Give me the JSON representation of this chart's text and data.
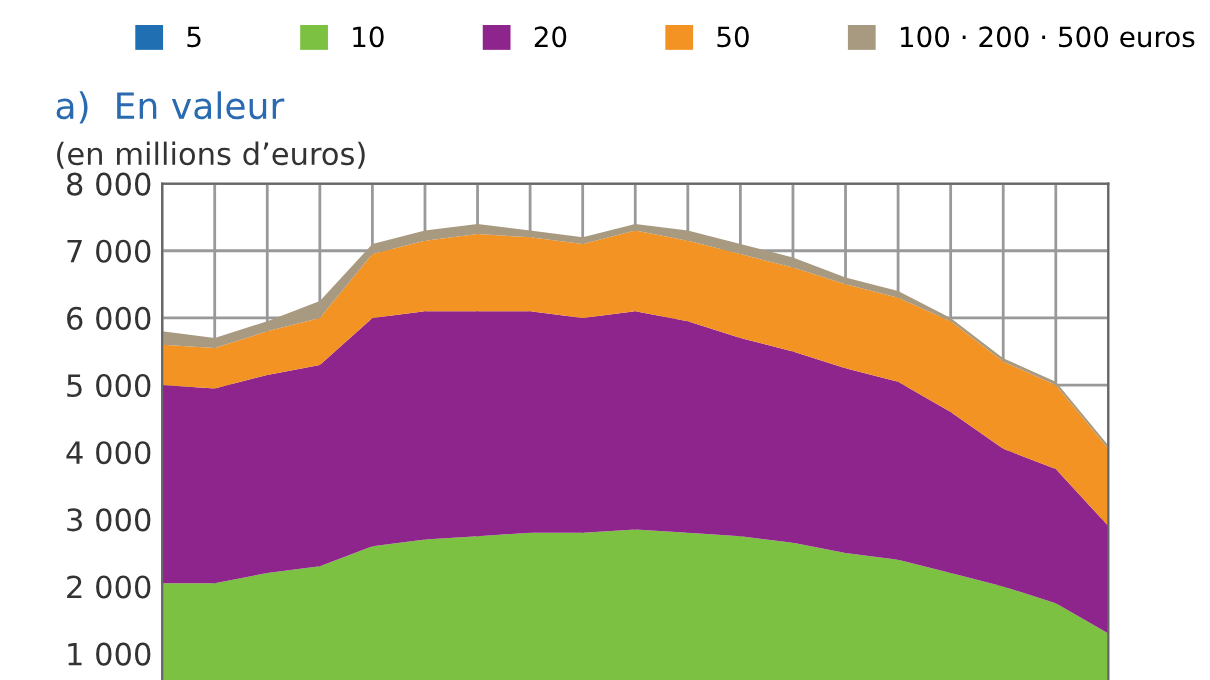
{
  "chart_data": {
    "type": "area",
    "stacked": true,
    "title": "a)  En valeur",
    "subtitle": "(en millions d’euros)",
    "categories": [
      null,
      null,
      null,
      null,
      null,
      null,
      null,
      null,
      null,
      null,
      null,
      null,
      null,
      null,
      null,
      null,
      null,
      null,
      null
    ],
    "series": [
      {
        "name": "5",
        "color": "#1f6fb2",
        "values": [
          null,
          null,
          null,
          null,
          null,
          null,
          null,
          null,
          null,
          null,
          null,
          null,
          null,
          null,
          null,
          null,
          null,
          null,
          null
        ]
      },
      {
        "name": "10",
        "color": "#7dc142",
        "values": [
          2050,
          2050,
          2200,
          2300,
          2600,
          2700,
          2750,
          2800,
          2800,
          2850,
          2800,
          2750,
          2650,
          2500,
          2400,
          2200,
          2000,
          1750,
          1300
        ]
      },
      {
        "name": "20",
        "color": "#8e258d",
        "values": [
          2950,
          2900,
          2950,
          3000,
          3400,
          3400,
          3350,
          3300,
          3200,
          3250,
          3150,
          2950,
          2850,
          2750,
          2650,
          2400,
          2050,
          2000,
          1600
        ]
      },
      {
        "name": "50",
        "color": "#f39324",
        "values": [
          600,
          600,
          650,
          700,
          950,
          1050,
          1150,
          1100,
          1100,
          1200,
          1200,
          1250,
          1250,
          1250,
          1250,
          1350,
          1300,
          1250,
          1150
        ]
      },
      {
        "name": "100 · 200 · 500 euros",
        "color": "#a89a80",
        "values": [
          200,
          150,
          150,
          250,
          150,
          150,
          150,
          100,
          100,
          100,
          150,
          150,
          150,
          100,
          100,
          50,
          50,
          50,
          50
        ]
      }
    ],
    "ylim": [
      0,
      8000
    ],
    "yticks": [
      {
        "value": 1000,
        "label": "1 000"
      },
      {
        "value": 2000,
        "label": "2 000"
      },
      {
        "value": 3000,
        "label": "3 000"
      },
      {
        "value": 4000,
        "label": "4 000"
      },
      {
        "value": 5000,
        "label": "5 000"
      },
      {
        "value": 6000,
        "label": "6 000"
      },
      {
        "value": 7000,
        "label": "7 000"
      },
      {
        "value": 8000,
        "label": "8 000"
      }
    ],
    "grid": true,
    "legend": "top"
  }
}
